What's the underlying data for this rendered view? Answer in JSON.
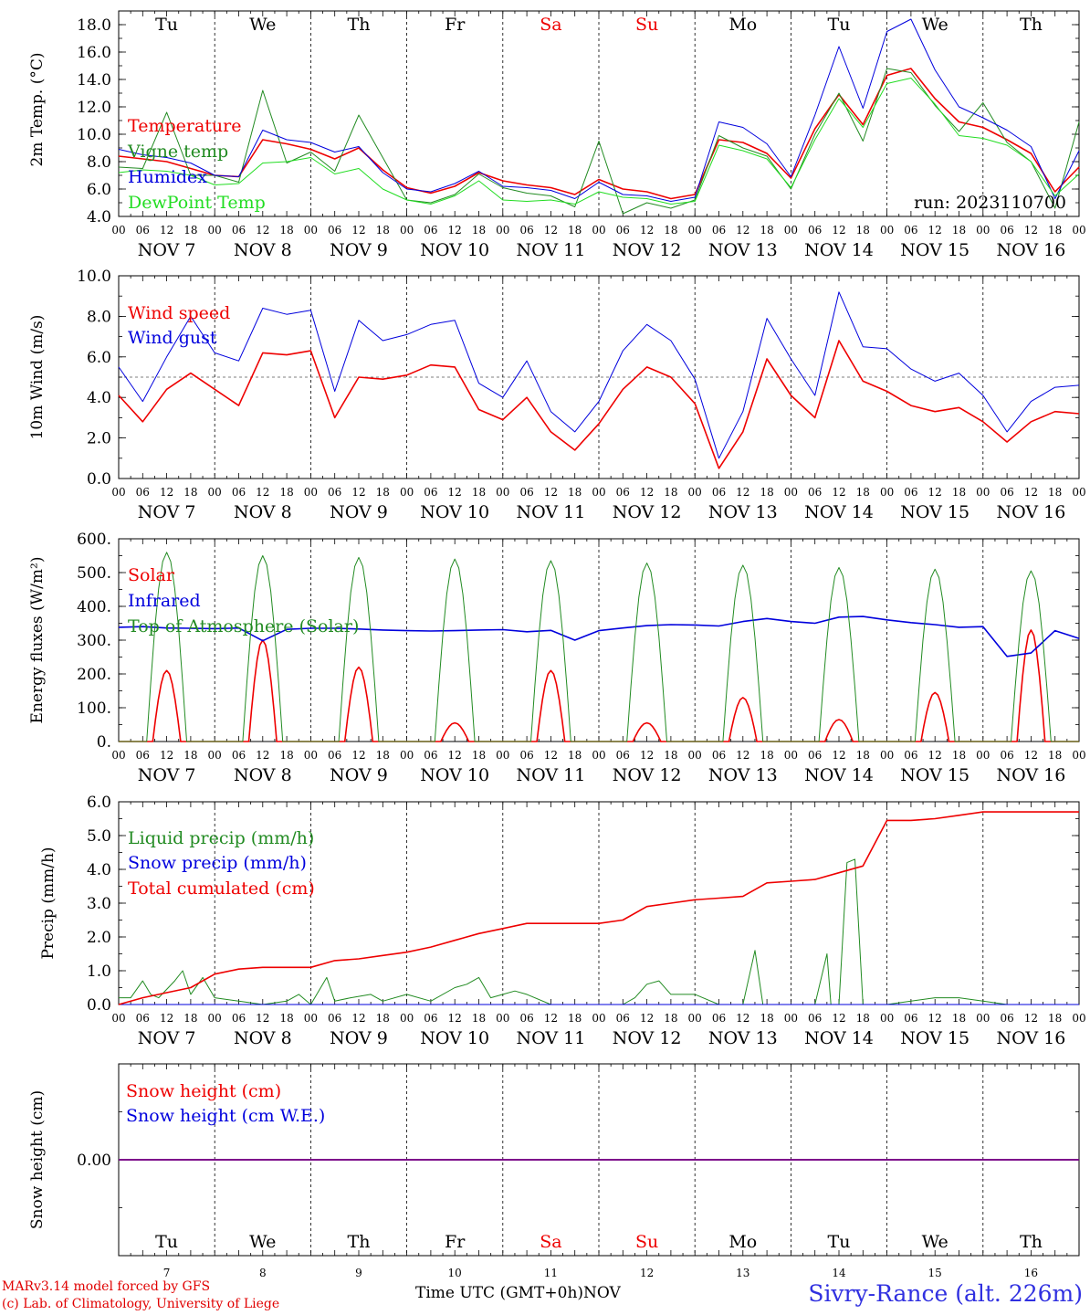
{
  "meta": {
    "run_label": "run: 2023110700",
    "station": "Sivry-Rance (alt. 226m)",
    "credit_1": "MARv3.14 model forced by GFS",
    "credit_2": "(c) Lab. of Climatology, University of Liege",
    "time_axis_label": "Time UTC (GMT+0h)",
    "month_label": "NOV"
  },
  "days": [
    {
      "abbr": "Tu",
      "date": "NOV  7",
      "num": "7",
      "weekend": false
    },
    {
      "abbr": "We",
      "date": "NOV  8",
      "num": "8",
      "weekend": false
    },
    {
      "abbr": "Th",
      "date": "NOV  9",
      "num": "9",
      "weekend": false
    },
    {
      "abbr": "Fr",
      "date": "NOV 10",
      "num": "10",
      "weekend": false
    },
    {
      "abbr": "Sa",
      "date": "NOV 11",
      "num": "11",
      "weekend": true
    },
    {
      "abbr": "Su",
      "date": "NOV 12",
      "num": "12",
      "weekend": true
    },
    {
      "abbr": "Mo",
      "date": "NOV 13",
      "num": "13",
      "weekend": false
    },
    {
      "abbr": "Tu",
      "date": "NOV 14",
      "num": "14",
      "weekend": false
    },
    {
      "abbr": "We",
      "date": "NOV 15",
      "num": "15",
      "weekend": false
    },
    {
      "abbr": "Th",
      "date": "NOV 16",
      "num": "16",
      "weekend": false
    }
  ],
  "hour_ticks": [
    "00",
    "06",
    "12",
    "18"
  ],
  "colors": {
    "red": "#ee0000",
    "green": "#228b22",
    "blue": "#0000dd",
    "lightgreen": "#22dd22",
    "purple": "#800080",
    "weekend": "#ee0000"
  },
  "chart_data": [
    {
      "type": "line",
      "ylabel": "2m Temp. (°C)",
      "ylim": [
        4.0,
        19.0
      ],
      "yticks": [
        4.0,
        6.0,
        8.0,
        10.0,
        12.0,
        14.0,
        16.0,
        18.0
      ],
      "tick_labels": [
        "4.0",
        "6.0",
        "8.0",
        "10.0",
        "12.0",
        "14.0",
        "16.0",
        "18.0"
      ],
      "show_days": true,
      "x_hours_from_nov7_00": [
        0,
        6,
        12,
        18,
        24,
        30,
        36,
        42,
        48,
        54,
        60,
        66,
        72,
        78,
        84,
        90,
        96,
        102,
        108,
        114,
        120,
        126,
        132,
        138,
        144,
        150,
        156,
        162,
        168,
        174,
        180,
        186,
        192,
        198,
        204,
        210,
        216,
        222,
        228,
        234,
        240
      ],
      "series": [
        {
          "name": "Temperature",
          "color": "red",
          "width": 1.6,
          "values": [
            8.4,
            8.2,
            8.0,
            7.5,
            7.0,
            6.9,
            9.6,
            9.3,
            8.9,
            8.2,
            9.0,
            7.4,
            6.1,
            5.7,
            6.2,
            7.2,
            6.6,
            6.3,
            6.1,
            5.6,
            6.7,
            6.0,
            5.8,
            5.3,
            5.6,
            9.6,
            9.4,
            8.6,
            6.8,
            10.4,
            12.9,
            10.7,
            14.3,
            14.8,
            12.6,
            10.9,
            10.5,
            9.6,
            8.6,
            5.8,
            7.6
          ]
        },
        {
          "name": "Vigne temp",
          "color": "green",
          "width": 1.0,
          "values": [
            7.6,
            7.5,
            11.6,
            7.0,
            7.0,
            6.5,
            13.2,
            7.9,
            8.7,
            7.3,
            11.4,
            8.3,
            5.2,
            5.0,
            5.6,
            7.1,
            6.1,
            5.7,
            5.5,
            4.7,
            9.5,
            4.2,
            5.0,
            4.6,
            5.2,
            9.9,
            9.0,
            8.4,
            6.0,
            10.0,
            13.0,
            9.5,
            14.8,
            14.5,
            12.1,
            10.2,
            12.3,
            9.4,
            8.0,
            4.6,
            10.9
          ]
        },
        {
          "name": "Humidex",
          "color": "blue",
          "width": 1.0,
          "values": [
            8.9,
            8.5,
            8.3,
            7.9,
            7.0,
            6.9,
            10.3,
            9.6,
            9.4,
            8.7,
            9.1,
            7.2,
            6.0,
            5.8,
            6.4,
            7.3,
            6.2,
            6.1,
            5.9,
            5.3,
            6.5,
            5.6,
            5.5,
            5.1,
            5.4,
            10.9,
            10.5,
            9.3,
            6.9,
            11.4,
            16.4,
            11.9,
            17.5,
            18.4,
            14.7,
            12.0,
            11.2,
            10.3,
            9.1,
            5.3,
            8.8
          ]
        },
        {
          "name": "DewPoint Temp",
          "color": "lightgreen",
          "width": 1.0,
          "values": [
            7.2,
            7.4,
            7.3,
            7.0,
            6.3,
            6.4,
            7.9,
            8.0,
            8.3,
            7.1,
            7.5,
            6.0,
            5.2,
            4.9,
            5.5,
            6.6,
            5.2,
            5.1,
            5.2,
            4.9,
            5.8,
            5.4,
            5.3,
            4.9,
            5.1,
            9.2,
            8.8,
            8.2,
            6.1,
            9.6,
            12.6,
            10.5,
            13.7,
            14.1,
            12.2,
            9.9,
            9.7,
            9.2,
            8.0,
            5.5,
            7.1
          ]
        }
      ]
    },
    {
      "type": "line",
      "ylabel": "10m Wind (m/s)",
      "ylim": [
        0.0,
        10.0
      ],
      "yticks": [
        0.0,
        2.0,
        4.0,
        6.0,
        8.0,
        10.0
      ],
      "tick_labels": [
        "0.0",
        "2.0",
        "4.0",
        "6.0",
        "8.0",
        "10.0"
      ],
      "reference_line": 5.0,
      "x_hours_from_nov7_00": [
        0,
        6,
        12,
        18,
        24,
        30,
        36,
        42,
        48,
        54,
        60,
        66,
        72,
        78,
        84,
        90,
        96,
        102,
        108,
        114,
        120,
        126,
        132,
        138,
        144,
        150,
        156,
        162,
        168,
        174,
        180,
        186,
        192,
        198,
        204,
        210,
        216,
        222,
        228,
        234,
        240
      ],
      "series": [
        {
          "name": "Wind speed",
          "color": "red",
          "width": 1.6,
          "values": [
            4.1,
            2.8,
            4.4,
            5.2,
            4.4,
            3.6,
            6.2,
            6.1,
            6.3,
            3.0,
            5.0,
            4.9,
            5.1,
            5.6,
            5.5,
            3.4,
            2.9,
            4.0,
            2.3,
            1.4,
            2.7,
            4.4,
            5.5,
            5.0,
            3.7,
            0.5,
            2.3,
            5.9,
            4.1,
            3.0,
            6.8,
            4.8,
            4.3,
            3.6,
            3.3,
            3.5,
            2.8,
            1.8,
            2.8,
            3.3,
            3.2
          ]
        },
        {
          "name": "Wind gust",
          "color": "blue",
          "width": 1.0,
          "values": [
            5.5,
            3.8,
            6.0,
            8.0,
            6.2,
            5.8,
            8.4,
            8.1,
            8.3,
            4.3,
            7.8,
            6.8,
            7.1,
            7.6,
            7.8,
            4.7,
            4.0,
            5.8,
            3.3,
            2.3,
            3.8,
            6.3,
            7.6,
            6.8,
            4.9,
            1.0,
            3.3,
            7.9,
            5.9,
            4.1,
            9.2,
            6.5,
            6.4,
            5.4,
            4.8,
            5.2,
            4.1,
            2.3,
            3.8,
            4.5,
            4.6
          ]
        }
      ]
    },
    {
      "type": "line",
      "ylabel": "Energy fluxes (W/m²)",
      "ylim": [
        0,
        600
      ],
      "yticks": [
        0,
        100,
        200,
        300,
        400,
        500,
        600
      ],
      "tick_labels": [
        "0.",
        "100.",
        "200.",
        "300.",
        "400.",
        "500.",
        "600."
      ],
      "series": [
        {
          "name": "Solar",
          "color": "red",
          "width": 1.6,
          "daily_peak": [
            210,
            300,
            220,
            55,
            210,
            55,
            130,
            65,
            145,
            330
          ]
        },
        {
          "name": "Infrared",
          "color": "blue",
          "width": 1.6,
          "x_hours_from_nov7_00": [
            0,
            6,
            12,
            18,
            24,
            30,
            36,
            42,
            48,
            54,
            60,
            66,
            72,
            78,
            84,
            90,
            96,
            102,
            108,
            114,
            120,
            126,
            132,
            138,
            144,
            150,
            156,
            162,
            168,
            174,
            180,
            186,
            192,
            198,
            204,
            210,
            216,
            222,
            228,
            234,
            240
          ],
          "values": [
            338,
            340,
            336,
            335,
            334,
            336,
            298,
            332,
            335,
            335,
            333,
            330,
            328,
            327,
            328,
            330,
            331,
            325,
            329,
            300,
            328,
            336,
            343,
            346,
            345,
            342,
            355,
            364,
            355,
            350,
            368,
            370,
            360,
            352,
            346,
            338,
            340,
            252,
            262,
            328,
            305
          ]
        },
        {
          "name": "Top of Atmosphere (Solar)",
          "color": "green",
          "width": 1.0,
          "daily_peak": [
            560,
            550,
            545,
            540,
            535,
            528,
            522,
            515,
            510,
            505
          ]
        }
      ]
    },
    {
      "type": "line",
      "ylabel": "Precip (mm/h)",
      "ylim": [
        0.0,
        6.0
      ],
      "yticks": [
        0.0,
        1.0,
        2.0,
        3.0,
        4.0,
        5.0,
        6.0
      ],
      "tick_labels": [
        "0.0",
        "1.0",
        "2.0",
        "3.0",
        "4.0",
        "5.0",
        "6.0"
      ],
      "show_days": true,
      "series": [
        {
          "name": "Liquid precip (mm/h)",
          "color": "green",
          "width": 1.0,
          "x_hours_from_nov7_00": [
            0,
            3,
            6,
            8,
            10,
            14,
            16,
            18,
            21,
            24,
            30,
            36,
            42,
            45,
            48,
            52,
            54,
            58,
            63,
            66,
            72,
            78,
            84,
            87,
            90,
            93,
            96,
            99,
            102,
            108,
            114,
            120,
            126,
            129,
            132,
            135,
            138,
            144,
            150,
            156,
            159,
            161,
            164,
            168,
            174,
            177,
            178,
            180,
            182,
            184,
            186,
            190,
            192,
            198,
            204,
            210,
            216,
            222,
            228,
            234,
            240
          ],
          "values": [
            0.2,
            0.2,
            0.7,
            0.3,
            0.2,
            0.7,
            1.0,
            0.3,
            0.8,
            0.2,
            0.1,
            0.0,
            0.1,
            0.3,
            0.0,
            0.8,
            0.1,
            0.2,
            0.3,
            0.1,
            0.3,
            0.1,
            0.5,
            0.6,
            0.8,
            0.2,
            0.3,
            0.4,
            0.3,
            0.0,
            0.0,
            0.0,
            0.0,
            0.2,
            0.6,
            0.7,
            0.3,
            0.3,
            0.0,
            0.0,
            1.6,
            0.0,
            0.0,
            0.0,
            0.0,
            1.5,
            0.0,
            0.0,
            4.2,
            4.3,
            0.0,
            0.0,
            0.0,
            0.1,
            0.2,
            0.2,
            0.1,
            0.0,
            0.0,
            0.0,
            0.0
          ]
        },
        {
          "name": "Snow precip (mm/h)",
          "color": "blue",
          "width": 1.0,
          "x_hours_from_nov7_00": [
            0,
            240
          ],
          "values": [
            0.0,
            0.0
          ]
        },
        {
          "name": "Total cumulated (cm)",
          "color": "red",
          "width": 1.6,
          "x_hours_from_nov7_00": [
            0,
            6,
            12,
            18,
            24,
            30,
            36,
            42,
            48,
            54,
            60,
            66,
            72,
            78,
            84,
            90,
            96,
            102,
            108,
            114,
            120,
            126,
            132,
            138,
            144,
            150,
            156,
            162,
            168,
            174,
            180,
            186,
            192,
            198,
            204,
            210,
            216,
            222,
            228,
            234,
            240
          ],
          "values": [
            0.0,
            0.2,
            0.35,
            0.5,
            0.9,
            1.05,
            1.1,
            1.1,
            1.1,
            1.3,
            1.35,
            1.45,
            1.55,
            1.7,
            1.9,
            2.1,
            2.25,
            2.4,
            2.4,
            2.4,
            2.4,
            2.5,
            2.9,
            3.0,
            3.1,
            3.15,
            3.2,
            3.6,
            3.65,
            3.7,
            3.9,
            4.1,
            5.45,
            5.45,
            5.5,
            5.6,
            5.7,
            5.7,
            5.7,
            5.7,
            5.7
          ]
        }
      ]
    },
    {
      "type": "line",
      "ylabel": "Snow height (cm)",
      "ylim": [
        -1.0,
        1.0
      ],
      "yticks": [
        0.0
      ],
      "tick_labels": [
        "0.00"
      ],
      "series": [
        {
          "name": "Snow height (cm)",
          "color": "red",
          "width": 1.4,
          "x_hours_from_nov7_00": [
            0,
            240
          ],
          "values": [
            0.0,
            0.0
          ]
        },
        {
          "name": "Snow height (cm W.E.)",
          "color": "blue",
          "width": 1.4,
          "x_hours_from_nov7_00": [
            0,
            240
          ],
          "values": [
            0.0,
            0.0
          ]
        }
      ]
    }
  ]
}
